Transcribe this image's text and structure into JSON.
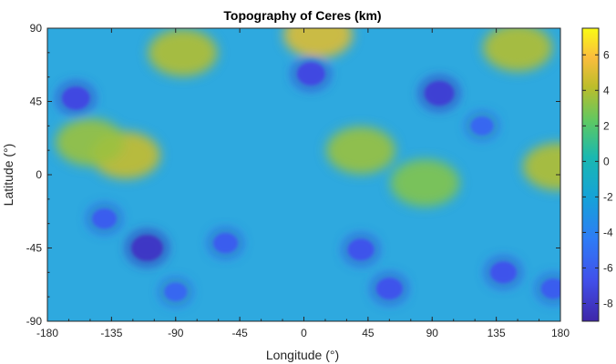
{
  "chart_data": {
    "type": "heatmap",
    "title": "Topography of Ceres (km)",
    "xlabel": "Longitude (°)",
    "ylabel": "Latitude (°)",
    "xlim": [
      -180,
      180
    ],
    "ylim": [
      -90,
      90
    ],
    "x_ticks": [
      "-180",
      "-135",
      "-90",
      "-45",
      "0",
      "45",
      "90",
      "135",
      "180"
    ],
    "y_ticks": [
      "90",
      "45",
      "0",
      "-45",
      "-90"
    ],
    "colorbar": {
      "range": [
        -9,
        7.5
      ],
      "ticks": [
        "6",
        "4",
        "2",
        "0",
        "-2",
        "-4",
        "-6",
        "-8"
      ],
      "colormap": "parula"
    },
    "features": [
      {
        "kind": "highland",
        "lon": -125,
        "lat": 12,
        "value": 4.5
      },
      {
        "kind": "highland",
        "lon": -150,
        "lat": 20,
        "value": 3.5
      },
      {
        "kind": "highland",
        "lon": 40,
        "lat": 15,
        "value": 3.5
      },
      {
        "kind": "highland",
        "lon": 85,
        "lat": -5,
        "value": 3
      },
      {
        "kind": "highland",
        "lon": 178,
        "lat": 5,
        "value": 4
      },
      {
        "kind": "highland",
        "lon": 10,
        "lat": 86,
        "value": 5
      },
      {
        "kind": "highland",
        "lon": -85,
        "lat": 75,
        "value": 4
      },
      {
        "kind": "highland",
        "lon": 150,
        "lat": 78,
        "value": 4
      },
      {
        "kind": "crater",
        "lon": -110,
        "lat": -45,
        "value": -8
      },
      {
        "kind": "crater",
        "lon": -55,
        "lat": -42,
        "value": -6
      },
      {
        "kind": "crater",
        "lon": 5,
        "lat": 62,
        "value": -7
      },
      {
        "kind": "crater",
        "lon": 95,
        "lat": 50,
        "value": -7.5
      },
      {
        "kind": "crater",
        "lon": -160,
        "lat": 47,
        "value": -7
      },
      {
        "kind": "crater",
        "lon": 60,
        "lat": -70,
        "value": -6.5
      },
      {
        "kind": "crater",
        "lon": 140,
        "lat": -60,
        "value": -6.5
      },
      {
        "kind": "crater",
        "lon": 125,
        "lat": 30,
        "value": -5.5
      },
      {
        "kind": "crater",
        "lon": -140,
        "lat": -27,
        "value": -6
      },
      {
        "kind": "crater",
        "lon": 175,
        "lat": -70,
        "value": -6
      },
      {
        "kind": "crater",
        "lon": -90,
        "lat": -72,
        "value": -5.5
      },
      {
        "kind": "crater",
        "lon": 40,
        "lat": -46,
        "value": -6.5
      }
    ]
  }
}
